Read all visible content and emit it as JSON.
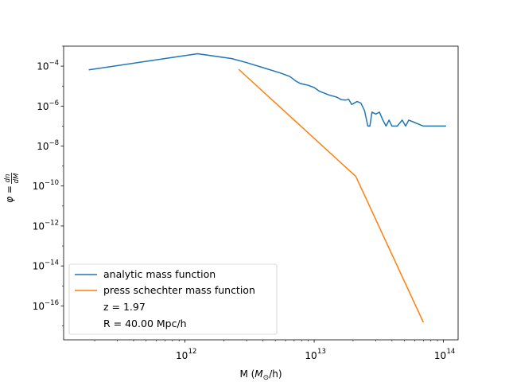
{
  "chart_data": {
    "type": "line",
    "xlabel": "M (M_⊙/h)",
    "ylabel": "φ = dn/dM",
    "xscale": "log",
    "yscale": "log",
    "xlim": [
      115000000000.0,
      130000000000000.0
    ],
    "ylim": [
      2e-18,
      0.001
    ],
    "x_ticks": [
      {
        "value": 1000000000000.0,
        "base": "10",
        "exp": "12"
      },
      {
        "value": 10000000000000.0,
        "base": "10",
        "exp": "13"
      },
      {
        "value": 100000000000000.0,
        "base": "10",
        "exp": "14"
      }
    ],
    "y_ticks": [
      {
        "value": 0.0001,
        "base": "10",
        "exp": "−4"
      },
      {
        "value": 1e-06,
        "base": "10",
        "exp": "−6"
      },
      {
        "value": 1e-08,
        "base": "10",
        "exp": "−8"
      },
      {
        "value": 1e-10,
        "base": "10",
        "exp": "−10"
      },
      {
        "value": 1e-12,
        "base": "10",
        "exp": "−12"
      },
      {
        "value": 1e-14,
        "base": "10",
        "exp": "−14"
      },
      {
        "value": 1e-16,
        "base": "10",
        "exp": "−16"
      }
    ],
    "series": [
      {
        "name": "analytic mass function",
        "color": "#1f77b4",
        "points": [
          [
            180000000000.0,
            6.5e-05
          ],
          [
            1250000000000.0,
            0.00042
          ],
          [
            2300000000000.0,
            0.00024
          ],
          [
            3000000000000.0,
            0.00015
          ],
          [
            4000000000000.0,
            8.5e-05
          ],
          [
            5500000000000.0,
            4.5e-05
          ],
          [
            6500000000000.0,
            3e-05
          ],
          [
            7200000000000.0,
            1.8e-05
          ],
          [
            7800000000000.0,
            1.35e-05
          ],
          [
            9000000000000.0,
            1.1e-05
          ],
          [
            10000000000000.0,
            8.5e-06
          ],
          [
            11000000000000.0,
            5.5e-06
          ],
          [
            13000000000000.0,
            3.6e-06
          ],
          [
            15000000000000.0,
            2.8e-06
          ],
          [
            16200000000000.0,
            2.1e-06
          ],
          [
            17500000000000.0,
            2e-06
          ],
          [
            18500000000000.0,
            2.2e-06
          ],
          [
            19500000000000.0,
            1.2e-06
          ],
          [
            21500000000000.0,
            1.7e-06
          ],
          [
            23000000000000.0,
            1.4e-06
          ],
          [
            24500000000000.0,
            6e-07
          ],
          [
            26000000000000.0,
            1e-07
          ],
          [
            27000000000000.0,
            1e-07
          ],
          [
            28000000000000.0,
            5e-07
          ],
          [
            30000000000000.0,
            4e-07
          ],
          [
            32000000000000.0,
            5e-07
          ],
          [
            34000000000000.0,
            2e-07
          ],
          [
            36000000000000.0,
            1e-07
          ],
          [
            38000000000000.0,
            2e-07
          ],
          [
            40000000000000.0,
            1e-07
          ],
          [
            44000000000000.0,
            1e-07
          ],
          [
            48000000000000.0,
            2e-07
          ],
          [
            51000000000000.0,
            1e-07
          ],
          [
            54000000000000.0,
            2e-07
          ],
          [
            60000000000000.0,
            1.5e-07
          ],
          [
            70000000000000.0,
            1e-07
          ],
          [
            105000000000000.0,
            1e-07
          ]
        ]
      },
      {
        "name": "press schechter mass function",
        "color": "#ff7f0e",
        "points": [
          [
            2600000000000.0,
            7e-05
          ],
          [
            21000000000000.0,
            3e-10
          ],
          [
            70000000000000.0,
            1.5e-17
          ]
        ]
      }
    ],
    "legend": {
      "placement": "lower-left",
      "entries": [
        "analytic mass function",
        "press schechter mass function"
      ],
      "notes": [
        "z = 1.97",
        "R = 40.00 Mpc/h"
      ]
    }
  }
}
